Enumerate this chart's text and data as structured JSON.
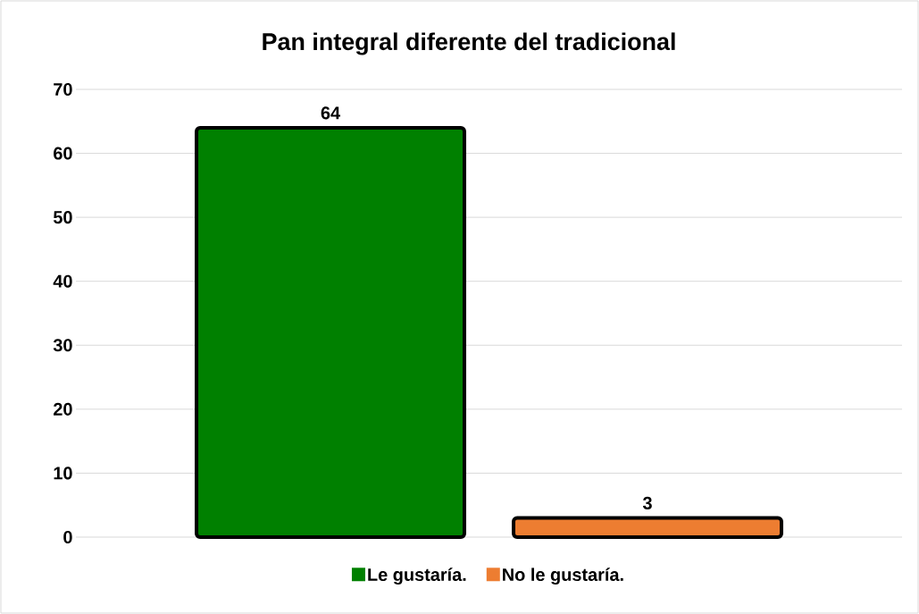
{
  "chart_data": {
    "type": "bar",
    "title": "Pan integral diferente del tradicional",
    "categories": [
      null,
      null
    ],
    "series": [
      {
        "name": "Le gustaría.",
        "color": "#008000",
        "values": [
          64,
          null
        ]
      },
      {
        "name": "No le gustaría.",
        "color": "#ed7d31",
        "values": [
          null,
          3
        ]
      }
    ],
    "ylim": [
      0,
      70
    ],
    "yticks": [
      0,
      10,
      20,
      30,
      40,
      50,
      60,
      70
    ],
    "grid": "y",
    "legend": "bottom",
    "data_labels": true
  }
}
